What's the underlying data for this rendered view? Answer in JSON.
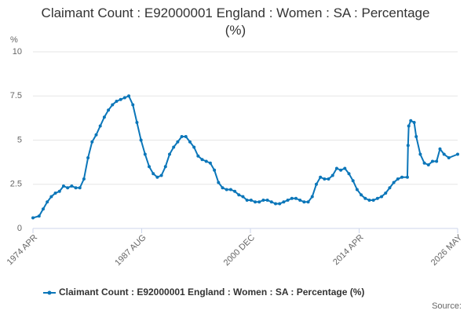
{
  "chart_data": {
    "type": "line",
    "title": "Claimant Count : E92000001 England : Women : SA : Percentage (%)",
    "y_label": "%",
    "source": "Source:",
    "x": [
      "1974 APR",
      "1975 JAN",
      "1975 JUL",
      "1976 JAN",
      "1976 JUL",
      "1977 JAN",
      "1977 JUL",
      "1978 JAN",
      "1978 JUL",
      "1979 JAN",
      "1979 JUL",
      "1980 JAN",
      "1980 JUL",
      "1981 JAN",
      "1981 JUL",
      "1982 JAN",
      "1982 JUL",
      "1983 JAN",
      "1983 JUL",
      "1984 JAN",
      "1984 JUL",
      "1985 JAN",
      "1985 JUL",
      "1986 JAN",
      "1986 JUL",
      "1987 JAN",
      "1987 JUL",
      "1988 JAN",
      "1988 JUL",
      "1989 JAN",
      "1989 JUL",
      "1990 JAN",
      "1990 JUL",
      "1991 JAN",
      "1991 JUL",
      "1992 JAN",
      "1992 JUL",
      "1993 JAN",
      "1993 JUL",
      "1994 JAN",
      "1994 JUL",
      "1995 JAN",
      "1995 JUL",
      "1996 JAN",
      "1996 JUL",
      "1997 JAN",
      "1997 JUL",
      "1998 JAN",
      "1998 JUL",
      "1999 JAN",
      "1999 JUL",
      "2000 JAN",
      "2000 JUL",
      "2001 JAN",
      "2001 JUL",
      "2002 JAN",
      "2002 JUL",
      "2003 JAN",
      "2003 JUL",
      "2004 JAN",
      "2004 JUL",
      "2005 JAN",
      "2005 JUL",
      "2006 JAN",
      "2006 JUL",
      "2007 JAN",
      "2007 JUL",
      "2008 JAN",
      "2008 JUL",
      "2009 JAN",
      "2009 JUL",
      "2010 JAN",
      "2010 JUL",
      "2011 JAN",
      "2011 JUL",
      "2012 JAN",
      "2012 JUL",
      "2013 JAN",
      "2013 JUL",
      "2014 JAN",
      "2014 JUL",
      "2015 JAN",
      "2015 JUL",
      "2016 JAN",
      "2016 JUL",
      "2017 JAN",
      "2017 JUL",
      "2018 JAN",
      "2018 JUL",
      "2019 JAN",
      "2019 JUL",
      "2020 MAR",
      "2020 APR",
      "2020 MAY",
      "2020 AUG",
      "2021 JAN",
      "2021 APR",
      "2021 OCT",
      "2022 APR",
      "2022 OCT",
      "2023 APR",
      "2023 OCT",
      "2024 MAR",
      "2024 SEP",
      "2025 APR",
      "2026 MAY"
    ],
    "series": [
      {
        "name": "Claimant Count : E92000001 England : Women : SA : Percentage (%)",
        "color": "#0b76b9",
        "values": [
          0.6,
          0.7,
          1.1,
          1.5,
          1.8,
          2.0,
          2.1,
          2.4,
          2.3,
          2.4,
          2.3,
          2.3,
          2.8,
          4.0,
          4.9,
          5.3,
          5.8,
          6.3,
          6.7,
          7.0,
          7.2,
          7.3,
          7.4,
          7.5,
          7.0,
          6.0,
          5.0,
          4.2,
          3.5,
          3.1,
          2.9,
          3.0,
          3.5,
          4.2,
          4.6,
          4.9,
          5.2,
          5.2,
          4.9,
          4.6,
          4.1,
          3.9,
          3.8,
          3.7,
          3.3,
          2.6,
          2.3,
          2.2,
          2.2,
          2.1,
          1.9,
          1.8,
          1.6,
          1.6,
          1.5,
          1.5,
          1.6,
          1.6,
          1.5,
          1.4,
          1.4,
          1.5,
          1.6,
          1.7,
          1.7,
          1.6,
          1.5,
          1.5,
          1.8,
          2.5,
          2.9,
          2.8,
          2.8,
          3.0,
          3.4,
          3.3,
          3.4,
          3.1,
          2.7,
          2.2,
          1.9,
          1.7,
          1.6,
          1.6,
          1.7,
          1.8,
          2.0,
          2.3,
          2.6,
          2.8,
          2.9,
          2.9,
          4.7,
          5.8,
          6.1,
          6.0,
          5.2,
          4.2,
          3.7,
          3.6,
          3.8,
          3.8,
          4.5,
          4.2,
          4.0,
          4.2
        ]
      }
    ],
    "xlim": [
      "1974 APR",
      "2026 MAY"
    ],
    "xticks": [
      "1974 APR",
      "1987 AUG",
      "2000 DEC",
      "2014 APR",
      "2026 MAY"
    ],
    "ylim": [
      0,
      10
    ],
    "yticks": [
      0,
      2.5,
      5,
      7.5,
      10
    ],
    "grid": true,
    "legend": "bottom"
  }
}
